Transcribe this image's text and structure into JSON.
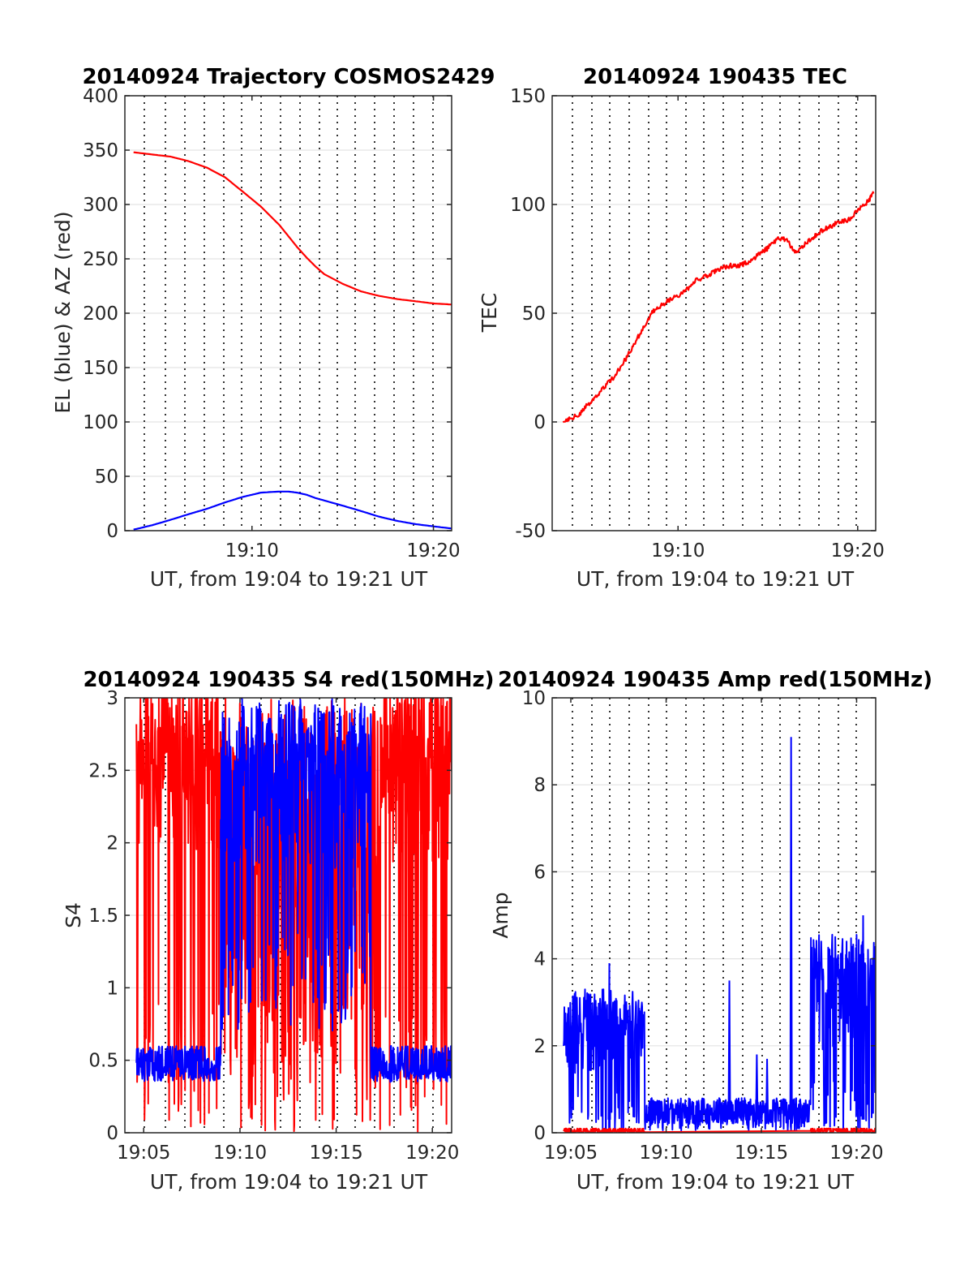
{
  "colors": {
    "red": "#ff0000",
    "blue": "#0000ff",
    "axis": "#262626",
    "grid": "#e3e3e3",
    "vgrid": "#000000"
  },
  "chart_data": [
    {
      "type": "line",
      "title": "20140924 Trajectory COSMOS2429",
      "xlabel": "UT, from 19:04 to 19:21 UT",
      "ylabel": "EL (blue) & AZ (red)",
      "xlim_minutes": [
        19.05,
        19.35
      ],
      "x_ticks": [
        {
          "v": 19.1667,
          "label": "19:10"
        },
        {
          "v": 19.3333,
          "label": "19:20"
        }
      ],
      "ylim": [
        0,
        400
      ],
      "y_ticks": [
        0,
        50,
        100,
        150,
        200,
        250,
        300,
        350,
        400
      ],
      "grid": true,
      "series": [
        {
          "color": "red",
          "x": [
            19.058,
            19.075,
            19.092,
            19.108,
            19.125,
            19.142,
            19.158,
            19.175,
            19.192,
            19.2,
            19.208,
            19.217,
            19.225,
            19.233,
            19.25,
            19.267,
            19.283,
            19.3,
            19.317,
            19.333,
            19.35
          ],
          "values": [
            348,
            346,
            344,
            340,
            334,
            325,
            312,
            298,
            281,
            271,
            261,
            251,
            243,
            236,
            227,
            220,
            216,
            213,
            211,
            209,
            208
          ]
        },
        {
          "color": "blue",
          "x": [
            19.058,
            19.075,
            19.092,
            19.108,
            19.125,
            19.142,
            19.158,
            19.175,
            19.192,
            19.2,
            19.208,
            19.217,
            19.225,
            19.25,
            19.267,
            19.283,
            19.3,
            19.317,
            19.333,
            19.35
          ],
          "values": [
            1,
            5,
            10,
            15,
            20,
            26,
            31,
            35,
            36,
            36,
            35,
            33,
            30,
            23,
            18,
            13,
            9,
            6,
            4,
            2
          ]
        }
      ]
    },
    {
      "type": "line",
      "title": "20140924 190435 TEC",
      "xlabel": "UT, from 19:04 to 19:21 UT",
      "ylabel": "TEC",
      "xlim_minutes": [
        19.05,
        19.35
      ],
      "x_ticks": [
        {
          "v": 19.1667,
          "label": "19:10"
        },
        {
          "v": 19.3333,
          "label": "19:20"
        }
      ],
      "ylim": [
        -50,
        150
      ],
      "y_ticks": [
        -50,
        0,
        50,
        100,
        150
      ],
      "grid": true,
      "series": [
        {
          "color": "red",
          "x": [
            19.06,
            19.067,
            19.075,
            19.083,
            19.092,
            19.1,
            19.108,
            19.117,
            19.125,
            19.133,
            19.142,
            19.15,
            19.158,
            19.167,
            19.175,
            19.183,
            19.192,
            19.2,
            19.208,
            19.217,
            19.225,
            19.233,
            19.242,
            19.25,
            19.258,
            19.267,
            19.275,
            19.283,
            19.292,
            19.3,
            19.308,
            19.317,
            19.325,
            19.333,
            19.342,
            19.348
          ],
          "values": [
            0,
            2,
            3,
            8,
            12,
            17,
            21,
            28,
            35,
            42,
            50,
            53,
            56,
            58,
            61,
            65,
            67,
            69,
            71,
            72,
            72,
            74,
            77,
            80,
            84,
            84,
            78,
            81,
            85,
            88,
            90,
            92,
            93,
            97,
            101,
            105
          ]
        }
      ]
    },
    {
      "type": "line",
      "title": "20140924 190435 S4 red(150MHz)",
      "xlabel": "UT, from 19:04 to 19:21 UT",
      "ylabel": "S4",
      "xlim_minutes": [
        19.067,
        19.35
      ],
      "x_ticks": [
        {
          "v": 19.0833,
          "label": "19:05"
        },
        {
          "v": 19.1667,
          "label": "19:10"
        },
        {
          "v": 19.25,
          "label": "19:15"
        },
        {
          "v": 19.3333,
          "label": "19:20"
        }
      ],
      "ylim": [
        0,
        3
      ],
      "y_ticks": [
        0,
        0.5,
        1,
        1.5,
        2,
        2.5,
        3
      ],
      "y_tick_labels": [
        "0",
        "0.5",
        "1",
        "1.5",
        "2",
        "2.5",
        "3"
      ],
      "grid": true,
      "series": [
        {
          "color": "red",
          "style": "noisy",
          "segments": [
            {
              "x0": 19.077,
              "x1": 19.15,
              "lo": 0,
              "hi": 3,
              "base": 2.7
            },
            {
              "x0": 19.15,
              "x1": 19.29,
              "lo": 0,
              "hi": 3,
              "base": 1.6
            },
            {
              "x0": 19.29,
              "x1": 19.35,
              "lo": 0,
              "hi": 3,
              "base": 2.6
            }
          ]
        },
        {
          "color": "blue",
          "style": "noisy",
          "segments": [
            {
              "x0": 19.077,
              "x1": 19.15,
              "lo": 0.35,
              "hi": 0.6,
              "base": 0.45
            },
            {
              "x0": 19.15,
              "x1": 19.28,
              "lo": 0.7,
              "hi": 3,
              "base": 2.4
            },
            {
              "x0": 19.28,
              "x1": 19.35,
              "lo": 0.35,
              "hi": 0.6,
              "base": 0.43
            }
          ]
        }
      ]
    },
    {
      "type": "line",
      "title": "20140924 190435 Amp red(150MHz)",
      "xlabel": "UT, from 19:04 to 19:21 UT",
      "ylabel": "Amp",
      "xlim_minutes": [
        19.067,
        19.35
      ],
      "x_ticks": [
        {
          "v": 19.0833,
          "label": "19:05"
        },
        {
          "v": 19.1667,
          "label": "19:10"
        },
        {
          "v": 19.25,
          "label": "19:15"
        },
        {
          "v": 19.3333,
          "label": "19:20"
        }
      ],
      "ylim": [
        0,
        10
      ],
      "y_ticks": [
        0,
        2,
        4,
        6,
        8,
        10
      ],
      "grid": true,
      "series": [
        {
          "color": "blue",
          "style": "noisy",
          "segments": [
            {
              "x0": 19.077,
              "x1": 19.148,
              "lo": 0,
              "hi": 3.3,
              "base": 2.2
            },
            {
              "x0": 19.148,
              "x1": 19.293,
              "lo": 0.05,
              "hi": 0.8,
              "base": 0.4
            },
            {
              "x0": 19.293,
              "x1": 19.35,
              "lo": 0,
              "hi": 4.6,
              "base": 3.0
            }
          ],
          "spikes": [
            {
              "x": 19.117,
              "v": 3.9
            },
            {
              "x": 19.222,
              "v": 3.5
            },
            {
              "x": 19.246,
              "v": 1.8
            },
            {
              "x": 19.255,
              "v": 1.7
            },
            {
              "x": 19.276,
              "v": 9.1
            },
            {
              "x": 19.339,
              "v": 5.0
            }
          ]
        },
        {
          "color": "red",
          "style": "noisy",
          "segments": [
            {
              "x0": 19.077,
              "x1": 19.148,
              "lo": 0,
              "hi": 0.1,
              "base": 0.03
            },
            {
              "x0": 19.293,
              "x1": 19.35,
              "lo": 0,
              "hi": 0.1,
              "base": 0.03
            }
          ]
        }
      ]
    }
  ]
}
